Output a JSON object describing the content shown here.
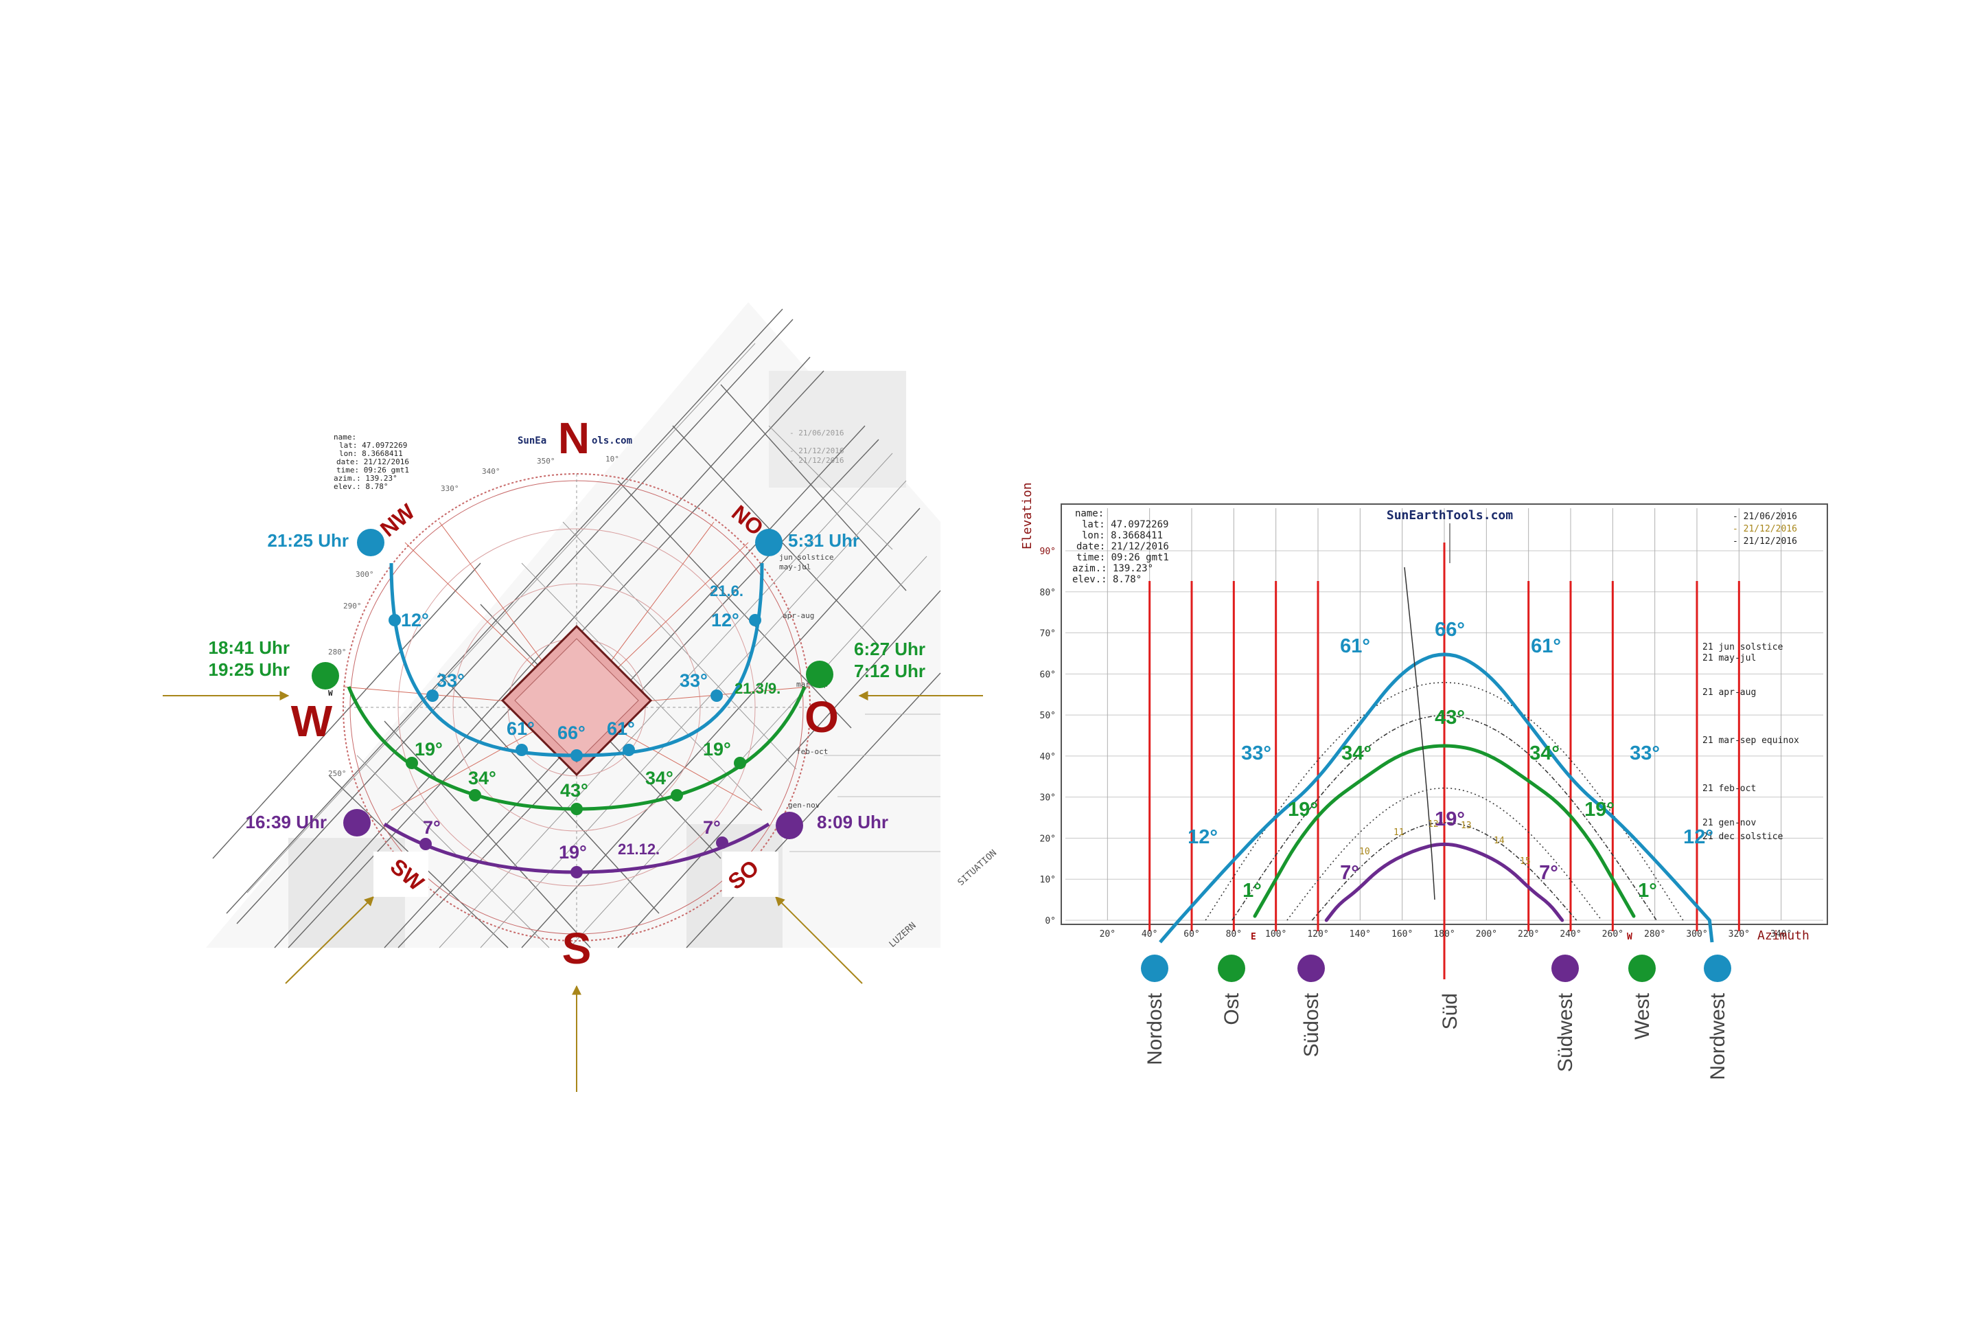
{
  "colors": {
    "june": "#1a8fc0",
    "equinox": "#17962e",
    "december": "#6a2a8e",
    "compass": "#a50d0d",
    "arrow": "#a8861a",
    "plan_red": "#d23a2a",
    "grid": "#9a9a9a",
    "marker": "#e01d1d"
  },
  "left_plan": {
    "brand_prefix": "SunEa",
    "brand_suffix": "ols.com",
    "info": [
      "name:",
      "lat: 47.0972269",
      "lon: 8.3668411",
      "date: 21/12/2016",
      "time: 09:26 gmt1",
      "azim.: 139.23°",
      "elev.: 8.78°"
    ],
    "legend": [
      "- 21/06/2016",
      "- 21/12/2016",
      "- 21/12/2016"
    ],
    "compass": {
      "n": "N",
      "s": "S",
      "w": "W",
      "o": "O",
      "nw": "NW",
      "no": "NO",
      "sw": "SW",
      "so": "SO"
    },
    "times": {
      "nw": "21:25 Uhr",
      "no": "5:31 Uhr",
      "w1": "18:41 Uhr",
      "w2": "19:25 Uhr",
      "o1": "6:27 Uhr",
      "o2": "7:12 Uhr",
      "sw": "16:39 Uhr",
      "so": "8:09 Uhr"
    },
    "date_labels": {
      "june": "21.6.",
      "equinox": "21.3/9.",
      "december": "21.12."
    },
    "june_angles": [
      "12°",
      "12°",
      "33°",
      "33°",
      "61°",
      "66°",
      "61°"
    ],
    "equinox_angles": [
      "19°",
      "19°",
      "34°",
      "34°",
      "43°"
    ],
    "december_angles": [
      "7°",
      "7°",
      "19°"
    ],
    "ring_degrees": [
      "350°",
      "10°",
      "340°",
      "330°",
      "300°",
      "290°",
      "280°",
      "250°"
    ],
    "small_notes": [
      "jun solstice",
      "may-jul",
      "apr-aug",
      "mar-sep",
      "feb-oct",
      "gen-nov",
      "W"
    ],
    "plan_text": [
      "SITUATION",
      "LUZERN"
    ]
  },
  "right_chart": {
    "brand": "SunEarthTools.com",
    "info": [
      "name:",
      "lat: 47.0972269",
      "lon: 8.3668411",
      "date: 21/12/2016",
      "time: 09:26 gmt1",
      "azim.: 139.23°",
      "elev.: 8.78°"
    ],
    "legend": [
      "- 21/06/2016",
      "- 21/12/2016",
      "- 21/12/2016"
    ],
    "y_title": "Elevation",
    "x_title": "Azimuth",
    "y_ticks": [
      "0°",
      "10°",
      "20°",
      "30°",
      "40°",
      "50°",
      "60°",
      "70°",
      "80°",
      "90°"
    ],
    "x_ticks": [
      "20°",
      "40°",
      "60°",
      "80°",
      "100°",
      "120°",
      "140°",
      "160°",
      "180°",
      "200°",
      "220°",
      "240°",
      "260°",
      "280°",
      "300°",
      "320°",
      "340°"
    ],
    "series_labels": [
      "21 jun solstice",
      "21 may-jul",
      "21 apr-aug",
      "21 mar-sep equinox",
      "21 feb-oct",
      "21 gen-nov",
      "21 dec solstice"
    ],
    "june_angles": [
      "12°",
      "33°",
      "61°",
      "66°",
      "61°",
      "33°",
      "12°"
    ],
    "equinox_angles": [
      "1°",
      "19°",
      "34°",
      "43°",
      "34°",
      "19°",
      "1°"
    ],
    "december_angles": [
      "7°",
      "19°",
      "7°"
    ],
    "small_marks": [
      "E",
      "W"
    ],
    "hour_labels": [
      "10",
      "11",
      "12",
      "13",
      "14",
      "15"
    ],
    "directions": [
      "Nordost",
      "Ost",
      "Südost",
      "Süd",
      "Südwest",
      "West",
      "Nordwest"
    ]
  },
  "chart_data": {
    "type": "line",
    "title": "",
    "xlabel": "Azimuth",
    "ylabel": "Elevation",
    "xlim": [
      0,
      360
    ],
    "ylim": [
      0,
      90
    ],
    "series": [
      {
        "name": "21 jun solstice",
        "x": [
          54,
          75,
          99,
          118,
          140,
          160,
          180,
          200,
          220,
          242,
          261,
          285,
          306
        ],
        "y": [
          0,
          12,
          25,
          33,
          48,
          61,
          66,
          61,
          48,
          33,
          25,
          12,
          0
        ]
      },
      {
        "name": "21 mar-sep equinox",
        "x": [
          90,
          100,
          110,
          124,
          140,
          160,
          180,
          200,
          220,
          236,
          250,
          260,
          270
        ],
        "y": [
          1,
          10,
          19,
          28,
          34,
          41,
          43,
          41,
          34,
          28,
          19,
          10,
          1
        ]
      },
      {
        "name": "21 dec solstice",
        "x": [
          124,
          130,
          138,
          150,
          165,
          180,
          195,
          210,
          222,
          230,
          236
        ],
        "y": [
          0,
          4,
          7,
          13,
          17,
          19,
          17,
          13,
          7,
          4,
          0
        ]
      }
    ],
    "vertical_markers": [
      40,
      60,
      80,
      100,
      120,
      180,
      220,
      240,
      260,
      300,
      320
    ]
  }
}
